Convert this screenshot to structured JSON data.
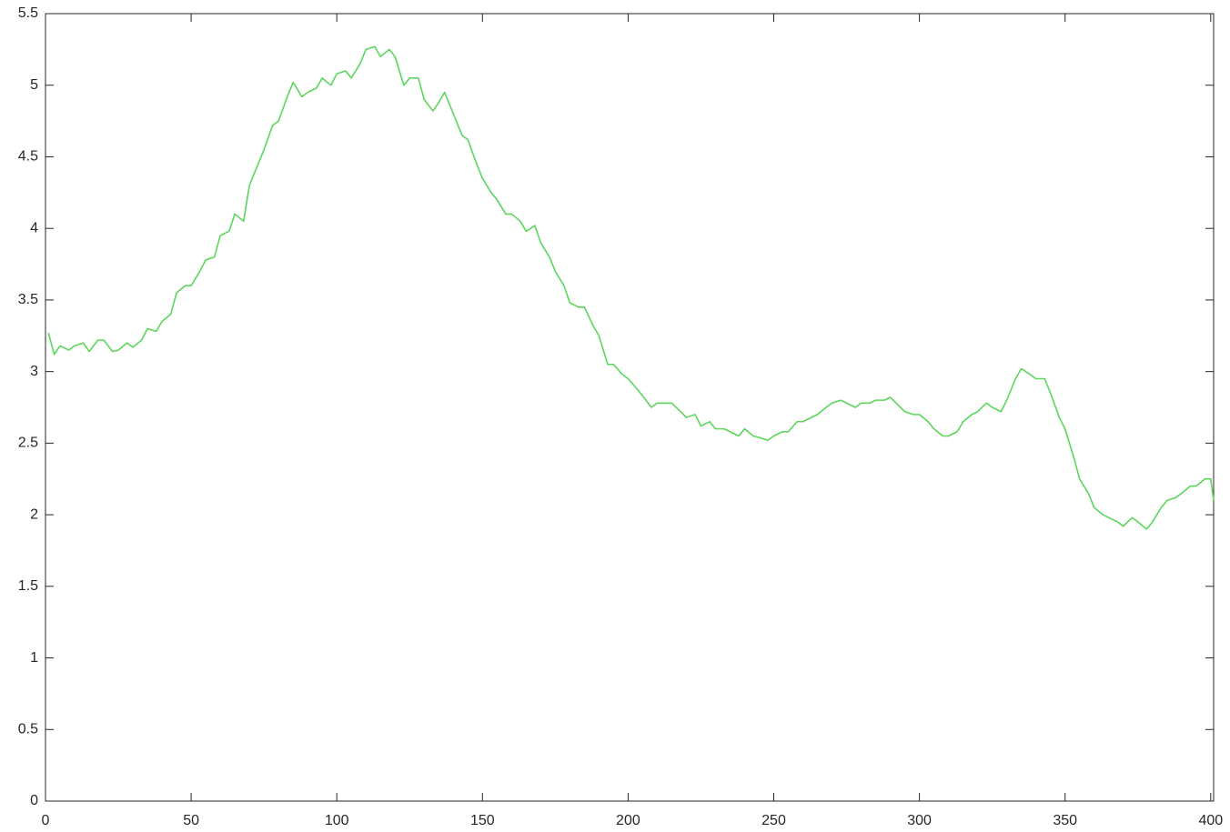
{
  "chart_data": {
    "type": "line",
    "x": [
      1,
      3,
      5,
      8,
      10,
      13,
      15,
      18,
      20,
      23,
      25,
      28,
      30,
      33,
      35,
      38,
      40,
      43,
      45,
      48,
      50,
      53,
      55,
      58,
      60,
      63,
      65,
      68,
      70,
      73,
      75,
      78,
      80,
      83,
      85,
      88,
      90,
      93,
      95,
      98,
      100,
      103,
      105,
      108,
      110,
      113,
      115,
      118,
      120,
      123,
      125,
      128,
      130,
      133,
      135,
      137,
      140,
      143,
      145,
      148,
      150,
      153,
      155,
      158,
      160,
      163,
      165,
      168,
      170,
      173,
      175,
      178,
      180,
      183,
      185,
      188,
      190,
      193,
      195,
      198,
      200,
      203,
      205,
      208,
      210,
      213,
      215,
      218,
      220,
      223,
      225,
      228,
      230,
      233,
      235,
      238,
      240,
      243,
      245,
      248,
      250,
      253,
      255,
      258,
      260,
      263,
      265,
      268,
      270,
      273,
      275,
      278,
      280,
      283,
      285,
      288,
      290,
      293,
      295,
      298,
      300,
      303,
      305,
      308,
      310,
      313,
      315,
      318,
      320,
      323,
      325,
      328,
      330,
      333,
      335,
      338,
      340,
      343,
      345,
      348,
      350,
      353,
      355,
      358,
      360,
      363,
      365,
      368,
      370,
      373,
      375,
      378,
      380,
      383,
      385,
      388,
      390,
      393,
      395,
      398,
      400,
      401
    ],
    "values": [
      3.27,
      3.12,
      3.18,
      3.15,
      3.18,
      3.2,
      3.14,
      3.22,
      3.22,
      3.14,
      3.15,
      3.2,
      3.17,
      3.22,
      3.3,
      3.28,
      3.35,
      3.4,
      3.55,
      3.6,
      3.6,
      3.7,
      3.78,
      3.8,
      3.95,
      3.98,
      4.1,
      4.05,
      4.3,
      4.45,
      4.55,
      4.72,
      4.75,
      4.92,
      5.02,
      4.92,
      4.95,
      4.98,
      5.05,
      5.0,
      5.08,
      5.1,
      5.05,
      5.15,
      5.25,
      5.27,
      5.2,
      5.25,
      5.2,
      5.0,
      5.05,
      5.05,
      4.9,
      4.82,
      4.88,
      4.95,
      4.8,
      4.65,
      4.62,
      4.45,
      4.35,
      4.25,
      4.2,
      4.1,
      4.1,
      4.05,
      3.98,
      4.02,
      3.9,
      3.8,
      3.7,
      3.6,
      3.48,
      3.45,
      3.45,
      3.32,
      3.25,
      3.05,
      3.05,
      2.98,
      2.95,
      2.88,
      2.83,
      2.75,
      2.78,
      2.78,
      2.78,
      2.72,
      2.68,
      2.7,
      2.62,
      2.65,
      2.6,
      2.6,
      2.58,
      2.55,
      2.6,
      2.55,
      2.54,
      2.52,
      2.55,
      2.58,
      2.58,
      2.65,
      2.65,
      2.68,
      2.7,
      2.75,
      2.78,
      2.8,
      2.78,
      2.75,
      2.78,
      2.78,
      2.8,
      2.8,
      2.82,
      2.76,
      2.72,
      2.7,
      2.7,
      2.65,
      2.6,
      2.55,
      2.55,
      2.58,
      2.65,
      2.7,
      2.72,
      2.78,
      2.75,
      2.72,
      2.8,
      2.95,
      3.02,
      2.98,
      2.95,
      2.95,
      2.85,
      2.68,
      2.6,
      2.4,
      2.25,
      2.15,
      2.05,
      2.0,
      1.98,
      1.95,
      1.92,
      1.98,
      1.95,
      1.9,
      1.95,
      2.05,
      2.1,
      2.12,
      2.15,
      2.2,
      2.2,
      2.25,
      2.25,
      2.1
    ],
    "color": "#5cd65c",
    "xlim": [
      0,
      401
    ],
    "xticks": [
      0,
      50,
      100,
      150,
      200,
      250,
      300,
      350,
      400
    ],
    "ylim": [
      0,
      5.5
    ],
    "yticks": [
      0,
      0.5,
      1,
      1.5,
      2,
      2.5,
      3,
      3.5,
      4,
      4.5,
      5,
      5.5
    ]
  }
}
